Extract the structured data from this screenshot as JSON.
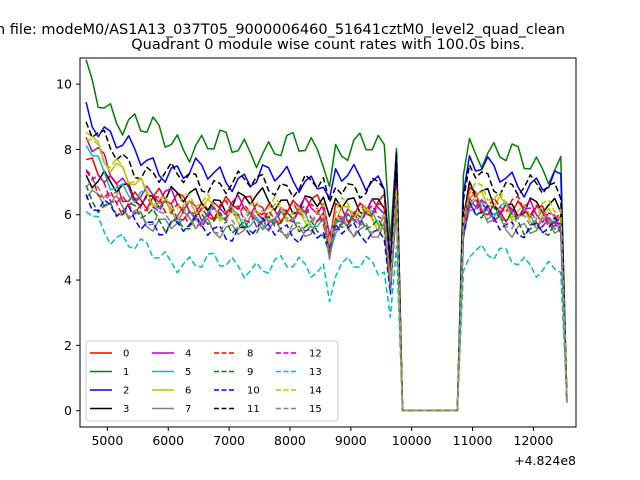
{
  "figure": {
    "suptitle": "n file: modeM0/AS1A13_037T05_9000006460_51641cztM0_level2_quad_clean",
    "title": "Quadrant 0 module wise count rates with 100.0s bins.",
    "offset_label": "+4.824e8"
  },
  "chart_data": {
    "type": "line",
    "title": "Quadrant 0 module wise count rates with 100.0s bins.",
    "xlabel": "",
    "ylabel": "",
    "x_offset": 482400000,
    "xlim": [
      4550,
      12700
    ],
    "ylim": [
      -0.5,
      10.8
    ],
    "xticks": [
      5000,
      6000,
      7000,
      8000,
      9000,
      10000,
      11000,
      12000
    ],
    "yticks": [
      0,
      2,
      4,
      6,
      8,
      10
    ],
    "legend_position": "lower-left",
    "legend_columns": 4,
    "grid": false,
    "gap": [
      9750,
      10750
    ],
    "series": [
      {
        "name": "0",
        "color": "#ff0000",
        "dash": "",
        "base": 6.2,
        "start": 7.5,
        "post": 6.0,
        "amp": 0.45,
        "phase": 0.3
      },
      {
        "name": "1",
        "color": "#008000",
        "dash": "",
        "base": 8.0,
        "start": 10.25,
        "post": 7.6,
        "amp": 0.6,
        "phase": 1.1
      },
      {
        "name": "2",
        "color": "#0000ff",
        "dash": "",
        "base": 7.1,
        "start": 9.35,
        "post": 7.0,
        "amp": 0.5,
        "phase": 2.0
      },
      {
        "name": "3",
        "color": "#000000",
        "dash": "",
        "base": 6.4,
        "start": 7.2,
        "post": 6.2,
        "amp": 0.45,
        "phase": 2.7
      },
      {
        "name": "4",
        "color": "#bf00bf",
        "dash": "",
        "base": 6.1,
        "start": 8.3,
        "post": 6.0,
        "amp": 0.45,
        "phase": 3.4
      },
      {
        "name": "5",
        "color": "#00bfbf",
        "dash": "",
        "base": 5.8,
        "start": 8.2,
        "post": 5.9,
        "amp": 0.4,
        "phase": 4.1
      },
      {
        "name": "6",
        "color": "#bfbf00",
        "dash": "",
        "base": 5.9,
        "start": 8.9,
        "post": 6.0,
        "amp": 0.45,
        "phase": 4.8
      },
      {
        "name": "7",
        "color": "#808080",
        "dash": "",
        "base": 5.6,
        "start": 6.8,
        "post": 5.6,
        "amp": 0.4,
        "phase": 5.5
      },
      {
        "name": "8",
        "color": "#ff0000",
        "dash": "6,3",
        "base": 6.0,
        "start": 7.0,
        "post": 6.1,
        "amp": 0.45,
        "phase": 0.8
      },
      {
        "name": "9",
        "color": "#008000",
        "dash": "6,3",
        "base": 5.7,
        "start": 6.7,
        "post": 5.7,
        "amp": 0.4,
        "phase": 1.6
      },
      {
        "name": "10",
        "color": "#0000ff",
        "dash": "6,3",
        "base": 5.5,
        "start": 6.6,
        "post": 5.6,
        "amp": 0.4,
        "phase": 2.3
      },
      {
        "name": "11",
        "color": "#000000",
        "dash": "6,3",
        "base": 6.9,
        "start": 8.8,
        "post": 6.8,
        "amp": 0.45,
        "phase": 3.0
      },
      {
        "name": "12",
        "color": "#bf00bf",
        "dash": "6,3",
        "base": 5.9,
        "start": 7.3,
        "post": 5.9,
        "amp": 0.4,
        "phase": 3.7
      },
      {
        "name": "13",
        "color": "#00bfbf",
        "dash": "6,3",
        "base": 4.4,
        "start": 6.3,
        "post": 4.5,
        "amp": 0.4,
        "phase": 4.4
      },
      {
        "name": "14",
        "color": "#bfbf00",
        "dash": "6,3",
        "base": 6.1,
        "start": 8.7,
        "post": 6.2,
        "amp": 0.45,
        "phase": 5.1
      },
      {
        "name": "15",
        "color": "#808080",
        "dash": "6,3",
        "base": 5.7,
        "start": 7.0,
        "post": 5.8,
        "amp": 0.4,
        "phase": 5.8
      }
    ]
  }
}
